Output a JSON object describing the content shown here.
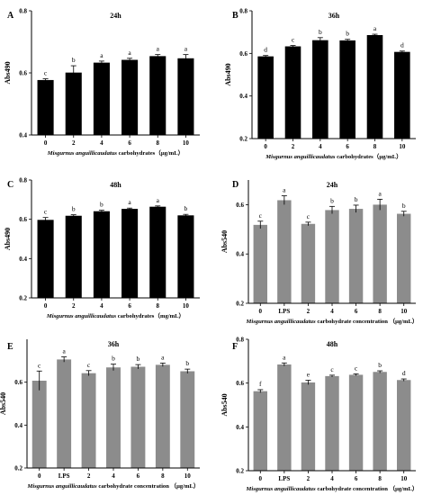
{
  "chart_data": [
    {
      "type": "bar",
      "panel": "A",
      "title": "24h",
      "ylabel": "Abs490",
      "xlabel_italic": "Misgurnus anguillicaudatus",
      "xlabel_rest": " carbohydrates（μg/mL）",
      "categories": [
        "0",
        "2",
        "4",
        "6",
        "8",
        "10"
      ],
      "values": [
        0.577,
        0.601,
        0.633,
        0.642,
        0.654,
        0.647
      ],
      "errors": [
        0.004,
        0.022,
        0.005,
        0.005,
        0.005,
        0.012
      ],
      "letters": [
        "c",
        "b",
        "a",
        "a",
        "a",
        "a"
      ],
      "ylim": [
        0.4,
        0.8
      ],
      "yticks": [
        "0.4",
        "0.6",
        "0.8"
      ],
      "bar_color": "#000000"
    },
    {
      "type": "bar",
      "panel": "B",
      "title": "36h",
      "ylabel": "Abs490",
      "xlabel_italic": "Misgurnus anguillicaudatus",
      "xlabel_rest": " carbohydrates（μg/mL）",
      "categories": [
        "0",
        "2",
        "4",
        "6",
        "8",
        "10"
      ],
      "values": [
        0.586,
        0.633,
        0.662,
        0.661,
        0.686,
        0.607
      ],
      "errors": [
        0.004,
        0.004,
        0.012,
        0.005,
        0.004,
        0.004
      ],
      "letters": [
        "d",
        "c",
        "b",
        "b",
        "a",
        "d"
      ],
      "ylim": [
        0.2,
        0.8
      ],
      "yticks": [
        "0.2",
        "0.4",
        "0.6",
        "0.8"
      ],
      "bar_color": "#000000"
    },
    {
      "type": "bar",
      "panel": "C",
      "title": "48h",
      "ylabel": "Abs490",
      "xlabel_italic": "Misgurnus anguillicaudatus",
      "xlabel_rest": " carbohydrates（mg/mL）",
      "categories": [
        "0",
        "2",
        "4",
        "6",
        "8",
        "10"
      ],
      "values": [
        0.597,
        0.618,
        0.641,
        0.653,
        0.664,
        0.62
      ],
      "errors": [
        0.012,
        0.005,
        0.005,
        0.004,
        0.004,
        0.005
      ],
      "letters": [
        "c",
        "b",
        "b",
        "a",
        "a",
        "b"
      ],
      "ylim": [
        0.2,
        0.8
      ],
      "yticks": [
        "0.2",
        "0.4",
        "0.6",
        "0.8"
      ],
      "bar_color": "#000000"
    },
    {
      "type": "bar",
      "panel": "D",
      "title": "24h",
      "ylabel": "Abs540",
      "xlabel_italic": "Misgurnus anguillicaudatus",
      "xlabel_rest": " carbohydrate concentration （μg/mL）",
      "categories": [
        "0",
        "LPS",
        "2",
        "4",
        "6",
        "8",
        "10"
      ],
      "values": [
        0.518,
        0.618,
        0.522,
        0.578,
        0.583,
        0.6,
        0.563
      ],
      "errors": [
        0.015,
        0.018,
        0.007,
        0.015,
        0.015,
        0.022,
        0.01
      ],
      "letters": [
        "c",
        "a",
        "c",
        "b",
        "b",
        "a",
        "b"
      ],
      "ylim": [
        0.2,
        0.7
      ],
      "yticks": [
        "0.2",
        "0.4",
        "0.6"
      ],
      "bar_color": "#8c8c8c"
    },
    {
      "type": "bar",
      "panel": "E",
      "title": "36h",
      "ylabel": "Abs540",
      "xlabel_italic": "Misgurnus anguillicaudatus",
      "xlabel_rest": " carbohydrate concentration （μg/mL）",
      "categories": [
        "0",
        "LPS",
        "2",
        "4",
        "6",
        "8",
        "10"
      ],
      "values": [
        0.607,
        0.706,
        0.642,
        0.669,
        0.672,
        0.681,
        0.651
      ],
      "errors": [
        0.045,
        0.012,
        0.012,
        0.015,
        0.01,
        0.008,
        0.01
      ],
      "letters": [
        "c",
        "a",
        "c",
        "b",
        "b",
        "a",
        "b"
      ],
      "ylim": [
        0.2,
        0.8
      ],
      "yticks": [
        "0.2",
        "0.4",
        "0.6"
      ],
      "bar_color": "#8c8c8c"
    },
    {
      "type": "bar",
      "panel": "F",
      "title": "48h",
      "ylabel": "Abs540",
      "xlabel_italic": "Misgurnus anguillicaudatus",
      "xlabel_rest": " carbohydrate concentration （μg/mL）",
      "categories": [
        "0",
        "LPS",
        "2",
        "4",
        "6",
        "8",
        "10"
      ],
      "values": [
        0.563,
        0.685,
        0.603,
        0.632,
        0.638,
        0.651,
        0.614
      ],
      "errors": [
        0.007,
        0.007,
        0.01,
        0.004,
        0.004,
        0.005,
        0.005
      ],
      "letters": [
        "f",
        "a",
        "e",
        "c",
        "c",
        "b",
        "d"
      ],
      "ylim": [
        0.2,
        0.8
      ],
      "yticks": [
        "0.2",
        "0.4",
        "0.6",
        "0.8"
      ],
      "bar_color": "#8c8c8c"
    }
  ]
}
